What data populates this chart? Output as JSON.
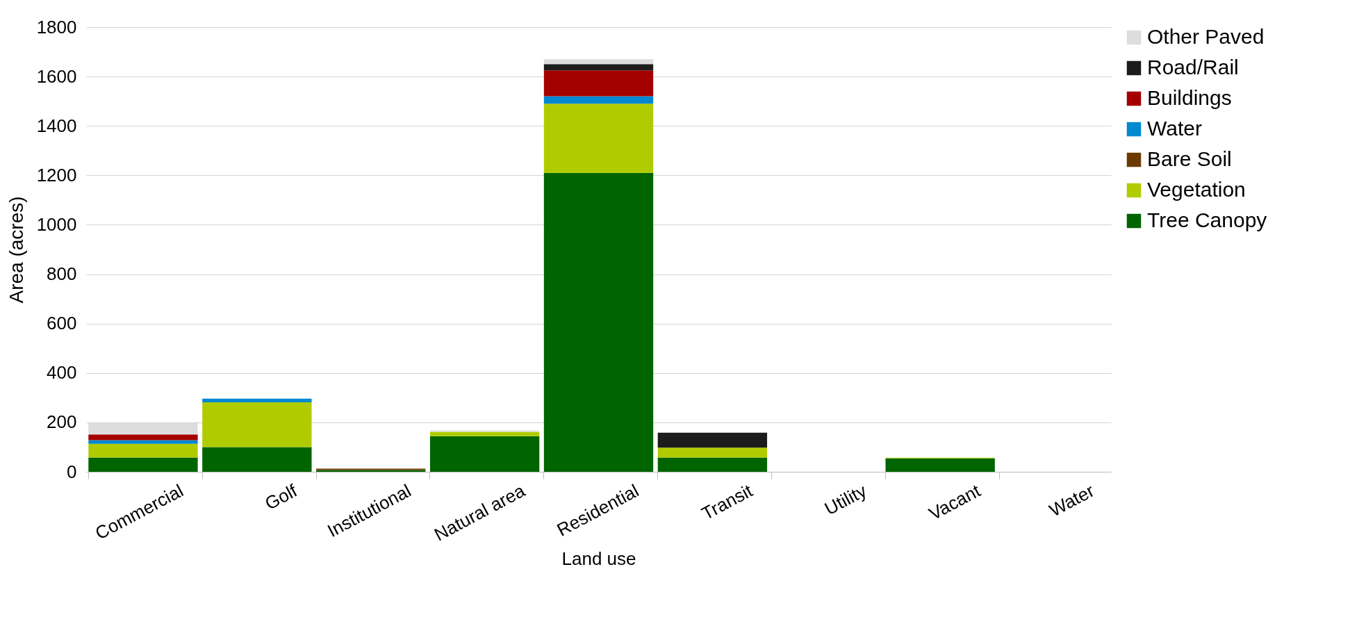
{
  "chart_data": {
    "type": "bar",
    "stacked": true,
    "xlabel": "Land use",
    "ylabel": "Area (acres)",
    "categories": [
      "Commercial",
      "Golf",
      "Institutional",
      "Natural area",
      "Residential",
      "Transit",
      "Utility",
      "Vacant",
      "Water"
    ],
    "series": [
      {
        "name": "Tree Canopy",
        "color": "#006400",
        "values": [
          58,
          100,
          7,
          144,
          1210,
          58,
          0,
          54,
          0
        ]
      },
      {
        "name": "Vegetation",
        "color": "#b0cc00",
        "values": [
          55,
          181,
          0,
          18,
          280,
          40,
          0,
          3,
          0
        ]
      },
      {
        "name": "Bare Soil",
        "color": "#6b3a00",
        "values": [
          0,
          0,
          6,
          0,
          0,
          0,
          0,
          0,
          0
        ]
      },
      {
        "name": "Water",
        "color": "#0088d0",
        "values": [
          15,
          15,
          0,
          0,
          30,
          0,
          0,
          0,
          0
        ]
      },
      {
        "name": "Buildings",
        "color": "#a50000",
        "values": [
          23,
          0,
          0,
          0,
          105,
          0,
          0,
          0,
          0
        ]
      },
      {
        "name": "Road/Rail",
        "color": "#1c1c1c",
        "values": [
          0,
          0,
          0,
          0,
          25,
          60,
          0,
          0,
          0
        ]
      },
      {
        "name": "Other Paved",
        "color": "#dddddd",
        "values": [
          46,
          0,
          0,
          5,
          20,
          0,
          0,
          0,
          0
        ]
      }
    ],
    "ylim": [
      0,
      1800
    ],
    "yticks": [
      0,
      200,
      400,
      600,
      800,
      1000,
      1200,
      1400,
      1600,
      1800
    ],
    "grid": "y",
    "legend": "right"
  }
}
